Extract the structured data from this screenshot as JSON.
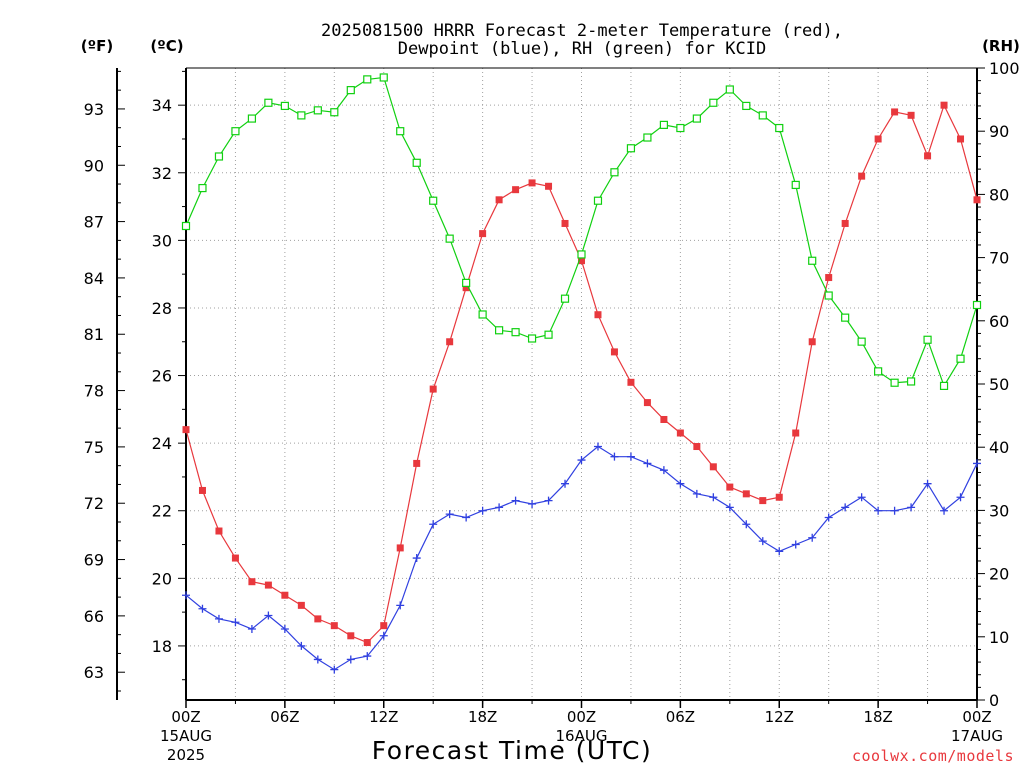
{
  "chart_data": {
    "type": "line",
    "title_line1": "2025081500 HRRR Forecast 2-meter Temperature (red),",
    "title_line2": "Dewpoint (blue), RH (green) for KCID",
    "unit_f": "(ºF)",
    "unit_c": "(ºC)",
    "unit_rh": "(RH)",
    "xlabel": "Forecast Time (UTC)",
    "watermark": "coolwx.com/models",
    "x_ticks": [
      {
        "hour": 0,
        "label": "00Z",
        "sub1": "15AUG",
        "sub2": "2025"
      },
      {
        "hour": 6,
        "label": "06Z",
        "sub1": "",
        "sub2": ""
      },
      {
        "hour": 12,
        "label": "12Z",
        "sub1": "",
        "sub2": ""
      },
      {
        "hour": 18,
        "label": "18Z",
        "sub1": "",
        "sub2": ""
      },
      {
        "hour": 24,
        "label": "00Z",
        "sub1": "16AUG",
        "sub2": ""
      },
      {
        "hour": 30,
        "label": "06Z",
        "sub1": "",
        "sub2": ""
      },
      {
        "hour": 36,
        "label": "12Z",
        "sub1": "",
        "sub2": ""
      },
      {
        "hour": 42,
        "label": "18Z",
        "sub1": "",
        "sub2": ""
      },
      {
        "hour": 48,
        "label": "00Z",
        "sub1": "17AUG",
        "sub2": ""
      }
    ],
    "xlim": [
      0,
      48
    ],
    "ylim_c": [
      16.4,
      35.1
    ],
    "ylim_rh": [
      0,
      100
    ],
    "yticks_c": [
      "18",
      "20",
      "22",
      "24",
      "26",
      "28",
      "30",
      "32",
      "34"
    ],
    "yticks_f": [
      "63",
      "66",
      "69",
      "72",
      "75",
      "78",
      "81",
      "84",
      "87",
      "90",
      "93"
    ],
    "yticks_rh": [
      "0",
      "10",
      "20",
      "30",
      "40",
      "50",
      "60",
      "70",
      "80",
      "90",
      "100"
    ],
    "grid": true,
    "colors": {
      "temperature": "#e8383d",
      "dewpoint": "#3040e0",
      "rh": "#10d010",
      "grid": "#a0a0a0"
    },
    "series": [
      {
        "name": "Temperature",
        "unit": "C",
        "marker": "filled-square",
        "values": [
          24.4,
          22.6,
          21.4,
          20.6,
          19.9,
          19.8,
          19.5,
          19.2,
          18.8,
          18.6,
          18.3,
          18.1,
          18.6,
          20.9,
          23.4,
          25.6,
          27.0,
          28.6,
          30.2,
          31.2,
          31.5,
          31.7,
          31.6,
          30.5,
          29.4,
          27.8,
          26.7,
          25.8,
          25.2,
          24.7,
          24.3,
          23.9,
          23.3,
          22.7,
          22.5,
          22.3,
          22.4,
          24.3,
          27.0,
          28.9,
          30.5,
          31.9,
          33.0,
          33.8,
          33.7,
          32.5,
          34.0,
          33.0,
          31.2
        ]
      },
      {
        "name": "Dewpoint",
        "unit": "C",
        "marker": "plus",
        "values": [
          19.5,
          19.1,
          18.8,
          18.7,
          18.5,
          18.9,
          18.5,
          18.0,
          17.6,
          17.3,
          17.6,
          17.7,
          18.3,
          19.2,
          20.6,
          21.6,
          21.9,
          21.8,
          22.0,
          22.1,
          22.3,
          22.2,
          22.3,
          22.8,
          23.5,
          23.9,
          23.6,
          23.6,
          23.4,
          23.2,
          22.8,
          22.5,
          22.4,
          22.1,
          21.6,
          21.1,
          20.8,
          21.0,
          21.2,
          21.8,
          22.1,
          22.4,
          22.0,
          22.0,
          22.1,
          22.8,
          22.0,
          22.4,
          23.4
        ]
      },
      {
        "name": "RH",
        "unit": "%",
        "marker": "open-square",
        "values": [
          75,
          81,
          86,
          90,
          92,
          94.5,
          94,
          92.5,
          93.3,
          93,
          96.5,
          98.2,
          98.5,
          90,
          85,
          79,
          73,
          66,
          61,
          58.5,
          58.2,
          57.2,
          57.8,
          63.5,
          70.5,
          79,
          83.5,
          87.3,
          89,
          91,
          90.5,
          92,
          94.5,
          96.6,
          94,
          92.5,
          90.5,
          81.5,
          69.5,
          64,
          60.5,
          56.7,
          52,
          50.2,
          50.4,
          57,
          49.7,
          54,
          62.5
        ]
      }
    ]
  }
}
